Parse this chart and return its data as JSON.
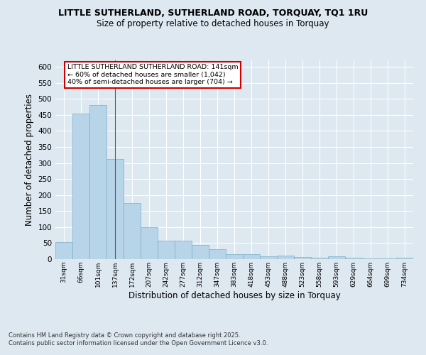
{
  "title_line1": "LITTLE SUTHERLAND, SUTHERLAND ROAD, TORQUAY, TQ1 1RU",
  "title_line2": "Size of property relative to detached houses in Torquay",
  "xlabel": "Distribution of detached houses by size in Torquay",
  "ylabel": "Number of detached properties",
  "categories": [
    "31sqm",
    "66sqm",
    "101sqm",
    "137sqm",
    "172sqm",
    "207sqm",
    "242sqm",
    "277sqm",
    "312sqm",
    "347sqm",
    "383sqm",
    "418sqm",
    "453sqm",
    "488sqm",
    "523sqm",
    "558sqm",
    "593sqm",
    "629sqm",
    "664sqm",
    "699sqm",
    "734sqm"
  ],
  "values": [
    54,
    455,
    480,
    312,
    175,
    100,
    58,
    58,
    44,
    32,
    15,
    15,
    8,
    10,
    7,
    5,
    8,
    4,
    2,
    2,
    4
  ],
  "bar_color": "#b8d4e8",
  "bar_edge_color": "#7aafc8",
  "highlight_bar_index": 3,
  "highlight_line_color": "#555555",
  "annotation_text": "LITTLE SUTHERLAND SUTHERLAND ROAD: 141sqm\n← 60% of detached houses are smaller (1,042)\n40% of semi-detached houses are larger (704) →",
  "annotation_box_color": "#ffffff",
  "annotation_box_edge_color": "#cc0000",
  "bg_color": "#dde8f0",
  "plot_bg_color": "#dde8f0",
  "grid_color": "#ffffff",
  "ylim": [
    0,
    620
  ],
  "yticks": [
    0,
    50,
    100,
    150,
    200,
    250,
    300,
    350,
    400,
    450,
    500,
    550,
    600
  ],
  "footer_line1": "Contains HM Land Registry data © Crown copyright and database right 2025.",
  "footer_line2": "Contains public sector information licensed under the Open Government Licence v3.0."
}
